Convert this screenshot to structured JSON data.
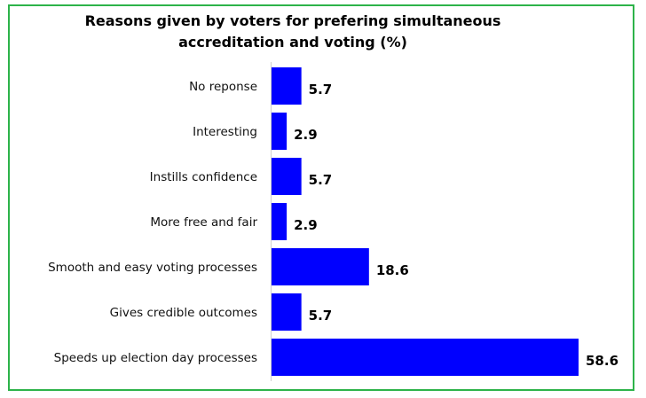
{
  "chart_data": {
    "type": "bar",
    "orientation": "horizontal",
    "title_line1": "Reasons given by voters for prefering simultaneous",
    "title_line2": "accreditation and voting (%)",
    "categories": [
      "No reponse",
      "Interesting",
      "Instills confidence",
      "More free and fair",
      "Smooth and easy voting processes",
      "Gives credible outcomes",
      "Speeds up election day processes"
    ],
    "values": [
      5.7,
      2.9,
      5.7,
      2.9,
      18.6,
      5.7,
      58.6
    ],
    "value_labels": [
      "5.7",
      "2.9",
      "5.7",
      "2.9",
      "18.6",
      "5.7",
      "58.6"
    ],
    "xlim": [
      0,
      65
    ],
    "bar_color": "#0000ff",
    "border_color": "#2db34a",
    "grid": false,
    "legend": "none"
  }
}
